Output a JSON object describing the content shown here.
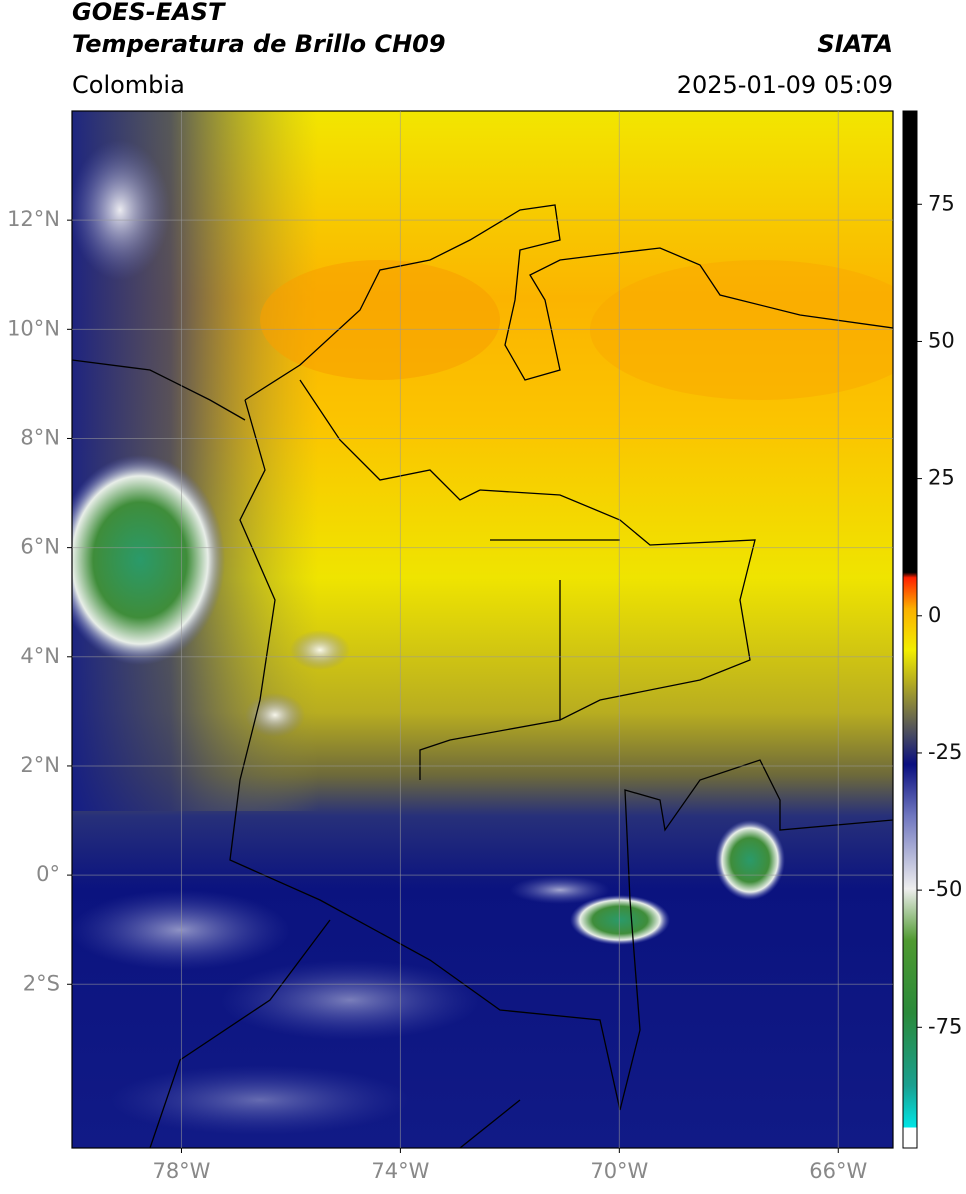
{
  "header": {
    "satellite": "GOES-EAST",
    "product": "Temperatura de Brillo CH09",
    "source": "SIATA",
    "region": "Colombia",
    "datetime": "2025-01-09 05:09"
  },
  "map": {
    "xlim": [
      -80,
      -65
    ],
    "ylim": [
      -5,
      14
    ],
    "xticks": [
      {
        "value": -78,
        "label": "78°W"
      },
      {
        "value": -74,
        "label": "74°W"
      },
      {
        "value": -70,
        "label": "70°W"
      },
      {
        "value": -66,
        "label": "66°W"
      }
    ],
    "yticks": [
      {
        "value": 12,
        "label": "12°N"
      },
      {
        "value": 10,
        "label": "10°N"
      },
      {
        "value": 8,
        "label": "8°N"
      },
      {
        "value": 6,
        "label": "6°N"
      },
      {
        "value": 4,
        "label": "4°N"
      },
      {
        "value": 2,
        "label": "2°N"
      },
      {
        "value": 0,
        "label": "0°"
      },
      {
        "value": -2,
        "label": "2°S"
      }
    ],
    "grid": true
  },
  "colorbar": {
    "lim": [
      -97,
      92
    ],
    "ticks": [
      75,
      50,
      25,
      0,
      -25,
      -50,
      -75
    ]
  }
}
